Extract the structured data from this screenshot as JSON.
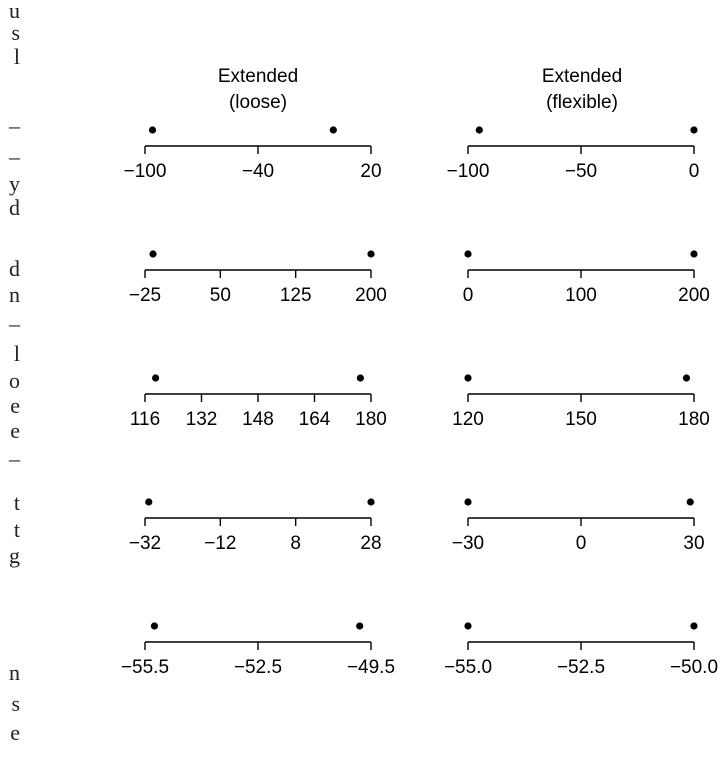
{
  "left_margin_text": [
    "u",
    "s",
    "l",
    "–",
    "–",
    "y",
    "d",
    "d",
    "n",
    "–",
    "l",
    "o",
    "e",
    "e",
    "–",
    "t",
    "t",
    "g",
    "n",
    "s",
    "e"
  ],
  "chart_data": [
    {
      "type": "scatter",
      "title": [
        "Extended",
        "(loose)"
      ],
      "panels": [
        {
          "xlim": [
            -100,
            20
          ],
          "ticks": [
            -100,
            -40,
            20
          ],
          "tick_labels": [
            "−100",
            "−40",
            "20"
          ],
          "points": [
            -96,
            0
          ]
        },
        {
          "xlim": [
            -25,
            200
          ],
          "ticks": [
            -25,
            50,
            125,
            200
          ],
          "tick_labels": [
            "−25",
            "50",
            "125",
            "200"
          ],
          "points": [
            -17,
            200
          ]
        },
        {
          "xlim": [
            116,
            180
          ],
          "ticks": [
            116,
            132,
            148,
            164,
            180
          ],
          "tick_labels": [
            "116",
            "132",
            "148",
            "164",
            "180"
          ],
          "points": [
            119,
            177
          ]
        },
        {
          "xlim": [
            -32,
            28
          ],
          "ticks": [
            -32,
            -12,
            8,
            28
          ],
          "tick_labels": [
            "−32",
            "−12",
            "8",
            "28"
          ],
          "points": [
            -31,
            28
          ]
        },
        {
          "xlim": [
            -55.5,
            -49.5
          ],
          "ticks": [
            -55.5,
            -52.5,
            -49.5
          ],
          "tick_labels": [
            "−55.5",
            "−52.5",
            "−49.5"
          ],
          "points": [
            -55.25,
            -49.8
          ]
        }
      ]
    },
    {
      "type": "scatter",
      "title": [
        "Extended",
        "(flexible)"
      ],
      "panels": [
        {
          "xlim": [
            -100,
            0
          ],
          "ticks": [
            -100,
            -50,
            0
          ],
          "tick_labels": [
            "−100",
            "−50",
            "0"
          ],
          "points": [
            -95,
            0
          ]
        },
        {
          "xlim": [
            0,
            200
          ],
          "ticks": [
            0,
            100,
            200
          ],
          "tick_labels": [
            "0",
            "100",
            "200"
          ],
          "points": [
            0,
            200
          ]
        },
        {
          "xlim": [
            120,
            180
          ],
          "ticks": [
            120,
            150,
            180
          ],
          "tick_labels": [
            "120",
            "150",
            "180"
          ],
          "points": [
            120,
            178
          ]
        },
        {
          "xlim": [
            -30,
            30
          ],
          "ticks": [
            -30,
            0,
            30
          ],
          "tick_labels": [
            "−30",
            "0",
            "30"
          ],
          "points": [
            -30,
            29
          ]
        },
        {
          "xlim": [
            -55,
            -50
          ],
          "ticks": [
            -55,
            -52.5,
            -50
          ],
          "tick_labels": [
            "−55.0",
            "−52.5",
            "−50.0"
          ],
          "points": [
            -55,
            -50
          ]
        }
      ]
    }
  ]
}
